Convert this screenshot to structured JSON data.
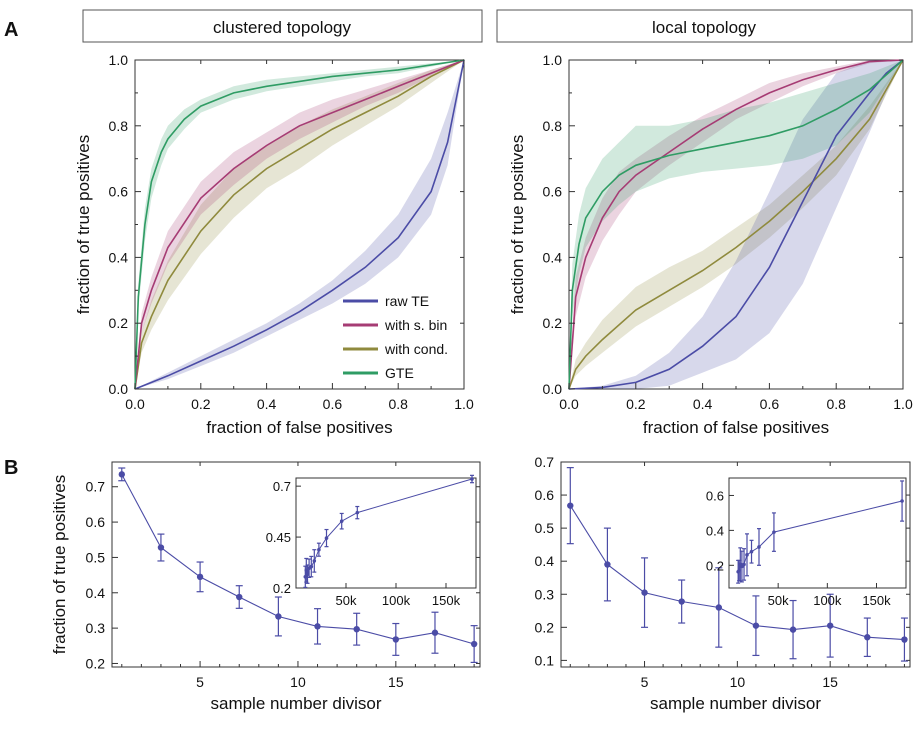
{
  "panel_labels": {
    "a": "A",
    "b": "B"
  },
  "colors": {
    "raw": "#4b4ca6",
    "sbin": "#a63c74",
    "cond": "#8f8a3d",
    "gte": "#2f9c64",
    "errbar": "#4b4ca6"
  },
  "chart_data": [
    {
      "id": "A1",
      "type": "line",
      "title": "clustered topology",
      "xlabel": "fraction of false positives",
      "ylabel": "fraction of true positives",
      "xlim": [
        0,
        1
      ],
      "ylim": [
        0,
        1
      ],
      "xticks": [
        "0.0",
        "0.2",
        "0.4",
        "0.6",
        "0.8",
        "1.0"
      ],
      "yticks": [
        "0.0",
        "0.2",
        "0.4",
        "0.6",
        "0.8",
        "1.0"
      ],
      "legend": {
        "position": "bottom-right",
        "entries": [
          "raw TE",
          "with s. bin",
          "with cond.",
          "GTE"
        ]
      },
      "series": [
        {
          "name": "raw TE",
          "key": "raw",
          "x": [
            0,
            0.1,
            0.2,
            0.3,
            0.4,
            0.5,
            0.6,
            0.7,
            0.8,
            0.9,
            0.95,
            1.0
          ],
          "y": [
            0,
            0.04,
            0.085,
            0.13,
            0.18,
            0.235,
            0.3,
            0.37,
            0.46,
            0.6,
            0.75,
            1.0
          ],
          "lo": [
            0,
            0.03,
            0.07,
            0.11,
            0.16,
            0.21,
            0.26,
            0.32,
            0.4,
            0.53,
            0.68,
            1.0
          ],
          "hi": [
            0,
            0.05,
            0.1,
            0.15,
            0.2,
            0.26,
            0.33,
            0.42,
            0.53,
            0.7,
            0.84,
            1.0
          ]
        },
        {
          "name": "with s. bin",
          "key": "sbin",
          "x": [
            0,
            0.02,
            0.05,
            0.1,
            0.2,
            0.3,
            0.4,
            0.5,
            0.6,
            0.7,
            0.8,
            0.9,
            1.0
          ],
          "y": [
            0,
            0.2,
            0.3,
            0.43,
            0.58,
            0.67,
            0.74,
            0.8,
            0.84,
            0.88,
            0.92,
            0.96,
            1.0
          ],
          "lo": [
            0,
            0.17,
            0.26,
            0.38,
            0.53,
            0.62,
            0.7,
            0.76,
            0.81,
            0.86,
            0.9,
            0.95,
            1.0
          ],
          "hi": [
            0,
            0.23,
            0.34,
            0.48,
            0.63,
            0.72,
            0.78,
            0.84,
            0.88,
            0.91,
            0.94,
            0.97,
            1.0
          ]
        },
        {
          "name": "with cond.",
          "key": "cond",
          "x": [
            0,
            0.02,
            0.05,
            0.1,
            0.2,
            0.3,
            0.4,
            0.5,
            0.6,
            0.7,
            0.8,
            0.9,
            1.0
          ],
          "y": [
            0,
            0.14,
            0.22,
            0.33,
            0.48,
            0.59,
            0.67,
            0.73,
            0.79,
            0.84,
            0.89,
            0.95,
            1.0
          ],
          "lo": [
            0,
            0.11,
            0.18,
            0.27,
            0.41,
            0.52,
            0.61,
            0.67,
            0.74,
            0.8,
            0.86,
            0.93,
            1.0
          ],
          "hi": [
            0,
            0.17,
            0.27,
            0.39,
            0.56,
            0.67,
            0.74,
            0.8,
            0.85,
            0.89,
            0.93,
            0.97,
            1.0
          ]
        },
        {
          "name": "GTE",
          "key": "gte",
          "x": [
            0,
            0.01,
            0.03,
            0.05,
            0.08,
            0.1,
            0.15,
            0.2,
            0.3,
            0.4,
            0.5,
            0.6,
            0.7,
            0.8,
            0.9,
            1.0
          ],
          "y": [
            0,
            0.28,
            0.5,
            0.63,
            0.72,
            0.76,
            0.82,
            0.86,
            0.9,
            0.92,
            0.935,
            0.95,
            0.96,
            0.97,
            0.985,
            1.0
          ],
          "lo": [
            0,
            0.24,
            0.45,
            0.58,
            0.68,
            0.73,
            0.79,
            0.84,
            0.88,
            0.905,
            0.92,
            0.935,
            0.95,
            0.96,
            0.98,
            1.0
          ],
          "hi": [
            0,
            0.32,
            0.55,
            0.67,
            0.76,
            0.8,
            0.85,
            0.88,
            0.92,
            0.94,
            0.95,
            0.96,
            0.97,
            0.98,
            0.99,
            1.0
          ]
        }
      ]
    },
    {
      "id": "A2",
      "type": "line",
      "title": "local topology",
      "xlabel": "fraction of false positives",
      "ylabel": "fraction of true positives",
      "xlim": [
        0,
        1
      ],
      "ylim": [
        0,
        1
      ],
      "xticks": [
        "0.0",
        "0.2",
        "0.4",
        "0.6",
        "0.8",
        "1.0"
      ],
      "yticks": [
        "0.0",
        "0.2",
        "0.4",
        "0.6",
        "0.8",
        "1.0"
      ],
      "series": [
        {
          "name": "raw TE",
          "key": "raw",
          "x": [
            0,
            0.1,
            0.2,
            0.3,
            0.4,
            0.5,
            0.6,
            0.7,
            0.8,
            0.9,
            0.95,
            1.0
          ],
          "y": [
            0,
            0.005,
            0.02,
            0.06,
            0.13,
            0.22,
            0.37,
            0.57,
            0.77,
            0.9,
            0.96,
            1.0
          ],
          "lo": [
            0,
            0,
            0,
            0.01,
            0.05,
            0.09,
            0.17,
            0.32,
            0.55,
            0.78,
            0.9,
            1.0
          ],
          "hi": [
            0,
            0.01,
            0.04,
            0.11,
            0.22,
            0.39,
            0.6,
            0.82,
            0.96,
            1.0,
            1.0,
            1.0
          ]
        },
        {
          "name": "with s. bin",
          "key": "sbin",
          "x": [
            0,
            0.02,
            0.05,
            0.1,
            0.15,
            0.2,
            0.3,
            0.4,
            0.5,
            0.6,
            0.7,
            0.8,
            0.9,
            1.0
          ],
          "y": [
            0,
            0.28,
            0.4,
            0.52,
            0.6,
            0.65,
            0.72,
            0.79,
            0.85,
            0.9,
            0.94,
            0.97,
            0.995,
            1.0
          ],
          "lo": [
            0,
            0.22,
            0.34,
            0.45,
            0.53,
            0.6,
            0.68,
            0.75,
            0.82,
            0.87,
            0.92,
            0.96,
            0.99,
            1.0
          ],
          "hi": [
            0,
            0.34,
            0.46,
            0.58,
            0.66,
            0.7,
            0.77,
            0.83,
            0.88,
            0.93,
            0.96,
            0.98,
            1.0,
            1.0
          ]
        },
        {
          "name": "with cond.",
          "key": "cond",
          "x": [
            0,
            0.02,
            0.05,
            0.1,
            0.2,
            0.3,
            0.4,
            0.5,
            0.6,
            0.7,
            0.8,
            0.9,
            1.0
          ],
          "y": [
            0,
            0.06,
            0.1,
            0.15,
            0.24,
            0.3,
            0.36,
            0.43,
            0.51,
            0.6,
            0.7,
            0.82,
            1.0
          ],
          "lo": [
            0,
            0.04,
            0.07,
            0.11,
            0.19,
            0.25,
            0.31,
            0.38,
            0.46,
            0.55,
            0.65,
            0.79,
            1.0
          ],
          "hi": [
            0,
            0.09,
            0.14,
            0.21,
            0.31,
            0.37,
            0.42,
            0.49,
            0.56,
            0.65,
            0.74,
            0.86,
            1.0
          ]
        },
        {
          "name": "GTE",
          "key": "gte",
          "x": [
            0,
            0.01,
            0.03,
            0.05,
            0.1,
            0.15,
            0.2,
            0.3,
            0.4,
            0.5,
            0.6,
            0.7,
            0.8,
            0.9,
            1.0
          ],
          "y": [
            0,
            0.3,
            0.44,
            0.52,
            0.6,
            0.65,
            0.68,
            0.71,
            0.73,
            0.75,
            0.77,
            0.8,
            0.85,
            0.91,
            1.0
          ],
          "lo": [
            0,
            0.22,
            0.35,
            0.43,
            0.51,
            0.56,
            0.6,
            0.64,
            0.66,
            0.67,
            0.68,
            0.7,
            0.74,
            0.84,
            1.0
          ],
          "hi": [
            0,
            0.38,
            0.53,
            0.61,
            0.7,
            0.75,
            0.8,
            0.8,
            0.82,
            0.85,
            0.87,
            0.9,
            0.93,
            0.96,
            1.0
          ]
        }
      ]
    },
    {
      "id": "B1",
      "type": "line",
      "title": "",
      "xlabel": "sample number divisor",
      "ylabel": "fraction of true positives",
      "xlim": [
        0.5,
        19.3
      ],
      "ylim": [
        0.19,
        0.77
      ],
      "xticks": [
        "5",
        "10",
        "15"
      ],
      "yticks": [
        "0.2",
        "0.3",
        "0.4",
        "0.5",
        "0.6",
        "0.7"
      ],
      "x": [
        1,
        3,
        5,
        7,
        9,
        11,
        13,
        15,
        17,
        19
      ],
      "y": [
        0.735,
        0.528,
        0.445,
        0.388,
        0.333,
        0.305,
        0.297,
        0.268,
        0.287,
        0.255
      ],
      "err": [
        0.018,
        0.038,
        0.042,
        0.032,
        0.055,
        0.05,
        0.045,
        0.045,
        0.058,
        0.052
      ],
      "inset": {
        "xlim": [
          0,
          180000
        ],
        "ylim": [
          0.2,
          0.74
        ],
        "xticks": [
          "50k",
          "100k",
          "150k"
        ],
        "yticks": [
          "0.2",
          "0.45",
          "0.7"
        ],
        "x": [
          9300,
          10300,
          11500,
          13100,
          15300,
          18300,
          22900,
          30500,
          45700,
          61300,
          176000
        ],
        "y": [
          0.255,
          0.287,
          0.268,
          0.297,
          0.305,
          0.333,
          0.388,
          0.445,
          0.528,
          0.57,
          0.735
        ],
        "err": [
          0.052,
          0.058,
          0.045,
          0.045,
          0.05,
          0.055,
          0.032,
          0.042,
          0.038,
          0.03,
          0.018
        ]
      }
    },
    {
      "id": "B2",
      "type": "line",
      "title": "",
      "xlabel": "sample number divisor",
      "ylabel": "",
      "xlim": [
        0.5,
        19.3
      ],
      "ylim": [
        0.08,
        0.7
      ],
      "xticks": [
        "5",
        "10",
        "15"
      ],
      "yticks": [
        "0.1",
        "0.2",
        "0.3",
        "0.4",
        "0.5",
        "0.6",
        "0.7"
      ],
      "x": [
        1,
        3,
        5,
        7,
        9,
        11,
        13,
        15,
        17,
        19
      ],
      "y": [
        0.568,
        0.39,
        0.305,
        0.278,
        0.26,
        0.205,
        0.193,
        0.205,
        0.17,
        0.163
      ],
      "err": [
        0.115,
        0.11,
        0.105,
        0.065,
        0.12,
        0.09,
        0.088,
        0.095,
        0.058,
        0.065
      ],
      "inset": {
        "xlim": [
          0,
          180000
        ],
        "ylim": [
          0.07,
          0.7
        ],
        "xticks": [
          "50k",
          "100k",
          "150k"
        ],
        "yticks": [
          "0.2",
          "0.4",
          "0.6"
        ],
        "x": [
          9300,
          10300,
          11500,
          13100,
          15300,
          18300,
          22900,
          30500,
          45700,
          176000
        ],
        "y": [
          0.163,
          0.17,
          0.205,
          0.193,
          0.205,
          0.26,
          0.278,
          0.305,
          0.39,
          0.568
        ],
        "err": [
          0.065,
          0.058,
          0.095,
          0.088,
          0.09,
          0.12,
          0.065,
          0.105,
          0.11,
          0.115
        ]
      }
    }
  ]
}
